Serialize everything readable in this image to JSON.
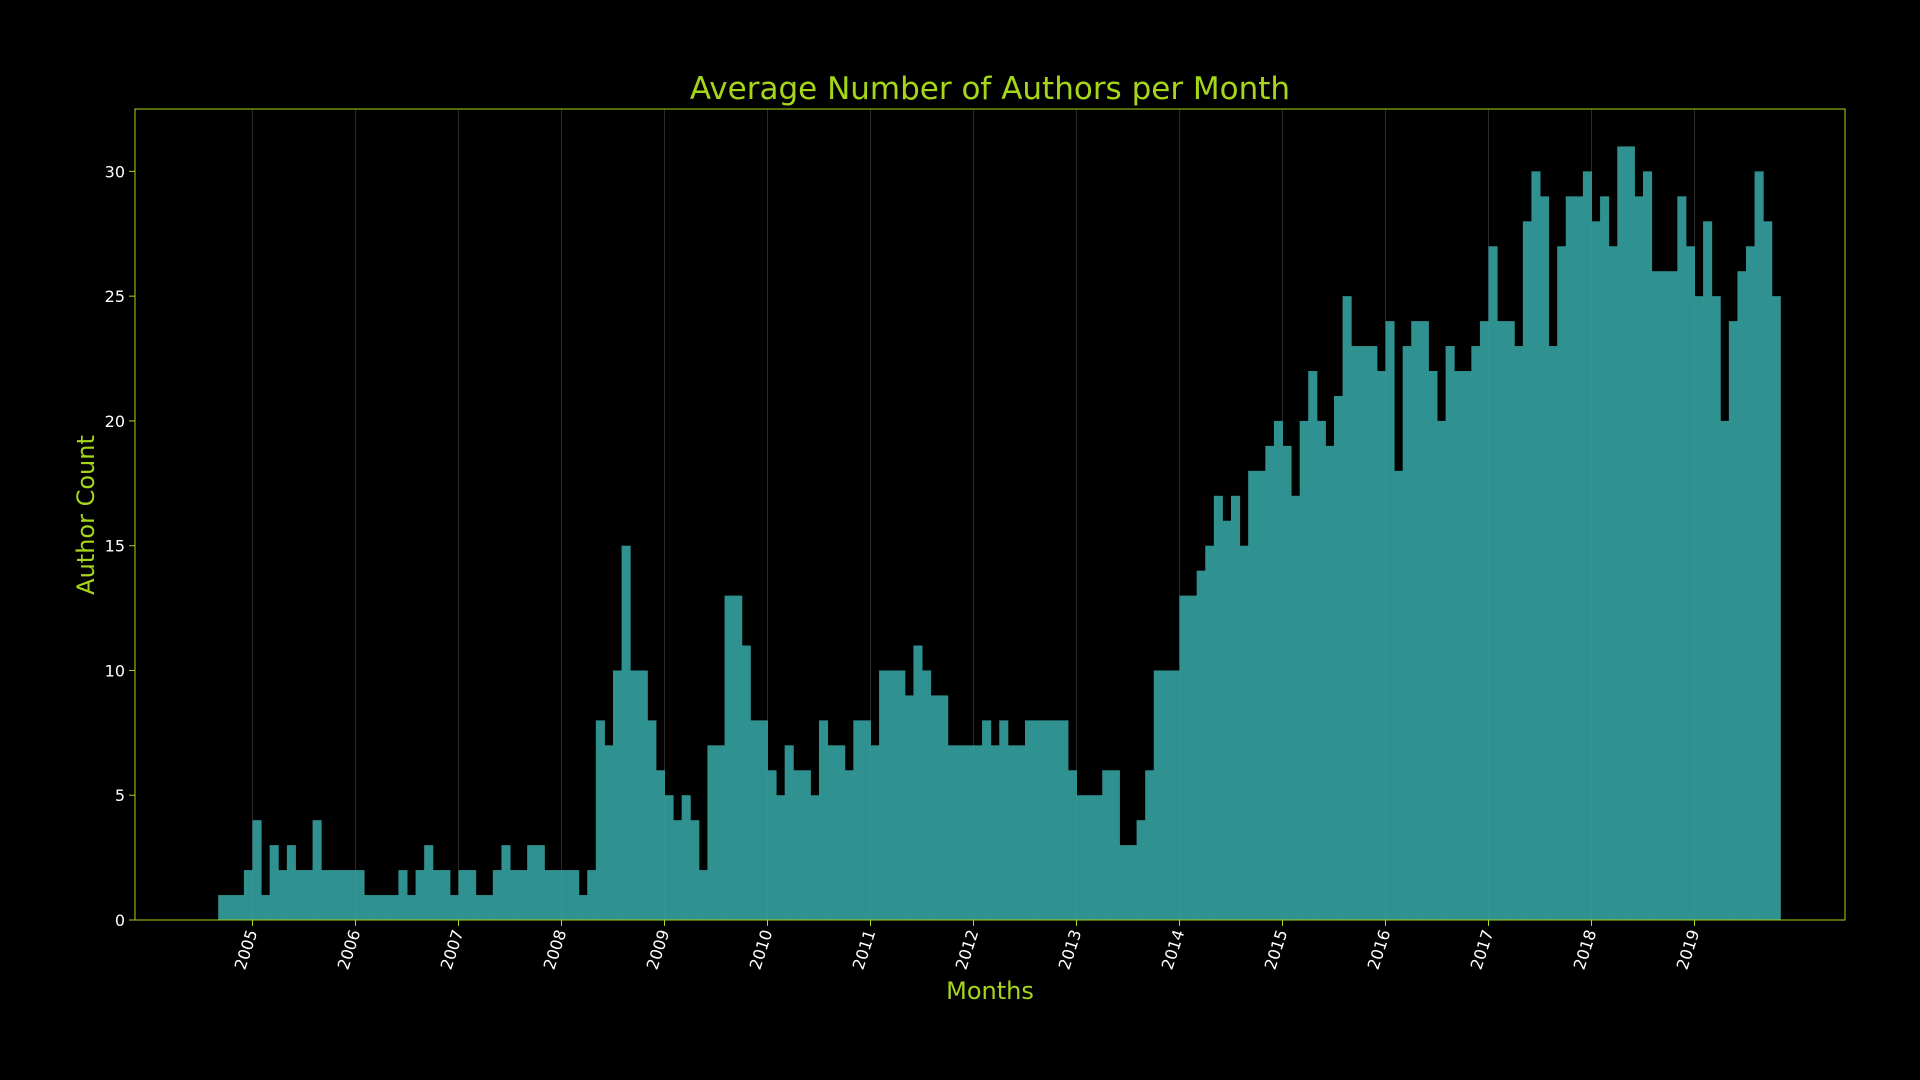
{
  "chart_data": {
    "type": "bar",
    "title": "Average Number of Authors per Month",
    "xlabel": "Months",
    "ylabel": "Author Count",
    "start": "2004-09",
    "values": [
      1,
      1,
      1,
      2,
      4,
      1,
      3,
      2,
      3,
      2,
      2,
      4,
      2,
      2,
      2,
      2,
      2,
      1,
      1,
      1,
      1,
      2,
      1,
      2,
      3,
      2,
      2,
      1,
      2,
      2,
      1,
      1,
      2,
      3,
      2,
      2,
      3,
      3,
      2,
      2,
      2,
      2,
      1,
      2,
      8,
      7,
      10,
      15,
      10,
      10,
      8,
      6,
      5,
      4,
      5,
      4,
      2,
      7,
      7,
      13,
      13,
      11,
      8,
      8,
      6,
      5,
      7,
      6,
      6,
      5,
      8,
      7,
      7,
      6,
      8,
      8,
      7,
      10,
      10,
      10,
      9,
      11,
      10,
      9,
      9,
      7,
      7,
      7,
      7,
      8,
      7,
      8,
      7,
      7,
      8,
      8,
      8,
      8,
      8,
      6,
      5,
      5,
      5,
      6,
      6,
      3,
      3,
      4,
      6,
      10,
      10,
      10,
      13,
      13,
      14,
      15,
      17,
      16,
      17,
      15,
      18,
      18,
      19,
      20,
      19,
      17,
      20,
      22,
      20,
      19,
      21,
      25,
      23,
      23,
      23,
      22,
      24,
      18,
      23,
      24,
      24,
      22,
      20,
      23,
      22,
      22,
      23,
      24,
      27,
      24,
      24,
      23,
      28,
      30,
      29,
      23,
      27,
      29,
      29,
      30,
      28,
      29,
      27,
      31,
      31,
      29,
      30,
      26,
      26,
      26,
      29,
      27,
      25,
      28,
      25,
      20,
      24,
      26,
      27,
      30,
      28,
      25
    ],
    "xticks": [
      "2005",
      "2006",
      "2007",
      "2008",
      "2009",
      "2010",
      "2011",
      "2012",
      "2013",
      "2014",
      "2015",
      "2016",
      "2017",
      "2018",
      "2019"
    ],
    "yticks": [
      "0",
      "5",
      "10",
      "15",
      "20",
      "25",
      "30"
    ],
    "ylim": [
      0,
      32.5
    ],
    "grid": "vertical at year ticks",
    "colors": {
      "bar": "#339999",
      "accent": "#a6d61a",
      "background": "#000000",
      "text": "#ffffff"
    }
  }
}
